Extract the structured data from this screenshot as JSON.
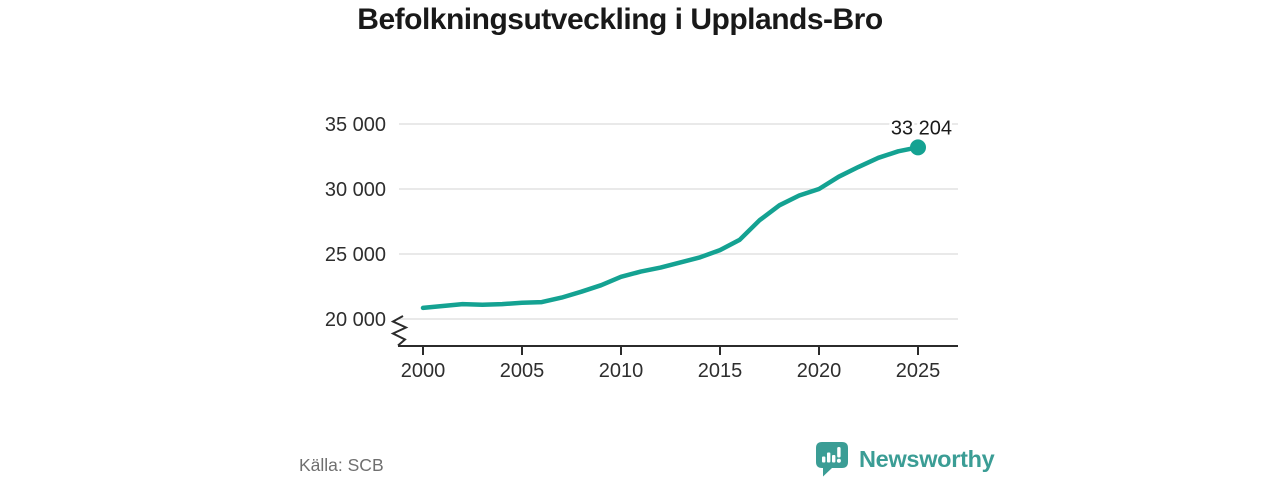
{
  "title": "Befolkningsutveckling i Upplands-Bro",
  "source": "Källa: SCB",
  "brand": "Newsworthy",
  "colors": {
    "line": "#14a292",
    "brand_teal": "#3b9d95",
    "grid": "#dcdcdc",
    "axis": "#2b2b2b",
    "tick_text": "#2e2e2e",
    "title_text": "#191919",
    "source_text": "#6f6f6f",
    "annotation_text": "#1a1a1a",
    "background": "#ffffff"
  },
  "chart_data": {
    "type": "line",
    "title": "Befolkningsutveckling i Upplands-Bro",
    "xlabel": "",
    "ylabel": "",
    "x": [
      2000,
      2001,
      2002,
      2003,
      2004,
      2005,
      2006,
      2007,
      2008,
      2009,
      2010,
      2011,
      2012,
      2013,
      2014,
      2015,
      2016,
      2017,
      2018,
      2019,
      2020,
      2021,
      2022,
      2023,
      2024,
      2025
    ],
    "values": [
      20850,
      21000,
      21150,
      21100,
      21150,
      21250,
      21300,
      21650,
      22100,
      22600,
      23250,
      23650,
      23950,
      24350,
      24750,
      25300,
      26100,
      27600,
      28750,
      29500,
      30000,
      30950,
      31700,
      32400,
      32900,
      33204
    ],
    "end_label": "33 204",
    "latest_value": 33204,
    "y_ticks": [
      {
        "value": 35000,
        "label": "35 000"
      },
      {
        "value": 30000,
        "label": "30 000"
      },
      {
        "value": 25000,
        "label": "25 000"
      },
      {
        "value": 20000,
        "label": "20 000"
      }
    ],
    "x_ticks": [
      {
        "value": 2000,
        "label": "2000"
      },
      {
        "value": 2005,
        "label": "2005"
      },
      {
        "value": 2010,
        "label": "2010"
      },
      {
        "value": 2015,
        "label": "2015"
      },
      {
        "value": 2020,
        "label": "2020"
      },
      {
        "value": 2025,
        "label": "2025"
      }
    ],
    "ylim": [
      20000,
      35000
    ],
    "xlim": [
      2000,
      2027
    ],
    "axis_break": true,
    "grid": true,
    "legend": false
  }
}
